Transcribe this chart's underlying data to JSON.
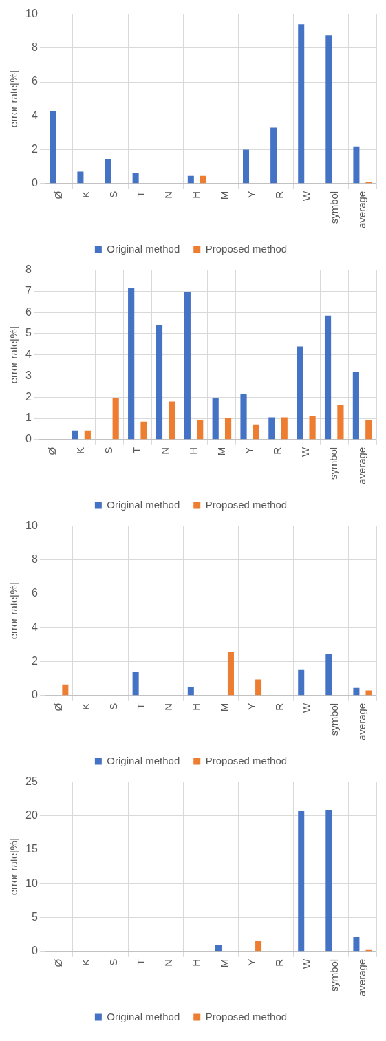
{
  "chart_data": [
    {
      "type": "bar",
      "ylabel": "error rate[%]",
      "categories": [
        "Ø",
        "K",
        "S",
        "T",
        "N",
        "H",
        "M",
        "Y",
        "R",
        "W",
        "symbol",
        "average"
      ],
      "series": [
        {
          "name": "Original method",
          "color": "#4472c4",
          "values": [
            4.3,
            0.7,
            1.45,
            0.6,
            0,
            0.45,
            0,
            2.0,
            3.3,
            9.4,
            8.75,
            2.2
          ]
        },
        {
          "name": "Proposed method",
          "color": "#ed7d31",
          "values": [
            0,
            0,
            0,
            0,
            0,
            0.45,
            0,
            0,
            0,
            0,
            0,
            0.1
          ]
        }
      ],
      "ylim": [
        0,
        10
      ],
      "yticks": [
        0,
        2,
        4,
        6,
        8,
        10
      ],
      "grid": true,
      "legend": "bottom"
    },
    {
      "type": "bar",
      "ylabel": "error rate[%]",
      "categories": [
        "Ø",
        "K",
        "S",
        "T",
        "N",
        "H",
        "M",
        "Y",
        "R",
        "W",
        "symbol",
        "average"
      ],
      "series": [
        {
          "name": "Original method",
          "color": "#4472c4",
          "values": [
            0,
            0.42,
            0,
            7.15,
            5.4,
            6.95,
            1.95,
            2.15,
            1.05,
            4.4,
            5.85,
            3.2
          ]
        },
        {
          "name": "Proposed method",
          "color": "#ed7d31",
          "values": [
            0,
            0.42,
            1.95,
            0.85,
            1.8,
            0.9,
            1.0,
            0.72,
            1.05,
            1.1,
            1.65,
            0.9
          ]
        }
      ],
      "ylim": [
        0,
        8
      ],
      "yticks": [
        0,
        1,
        2,
        3,
        4,
        5,
        6,
        7,
        8
      ],
      "grid": true,
      "legend": "bottom"
    },
    {
      "type": "bar",
      "ylabel": "error rate[%]",
      "categories": [
        "Ø",
        "K",
        "S",
        "T",
        "N",
        "H",
        "M",
        "Y",
        "R",
        "W",
        "symbol",
        "average"
      ],
      "series": [
        {
          "name": "Original method",
          "color": "#4472c4",
          "values": [
            0,
            0,
            0,
            1.4,
            0,
            0.5,
            0,
            0,
            0,
            1.5,
            2.45,
            0.45
          ]
        },
        {
          "name": "Proposed method",
          "color": "#ed7d31",
          "values": [
            0.65,
            0,
            0,
            0,
            0,
            0,
            2.55,
            0.95,
            0,
            0,
            0,
            0.3
          ]
        }
      ],
      "ylim": [
        0,
        10
      ],
      "yticks": [
        0,
        2,
        4,
        6,
        8,
        10
      ],
      "grid": true,
      "legend": "bottom"
    },
    {
      "type": "bar",
      "ylabel": "error rate[%]",
      "categories": [
        "Ø",
        "K",
        "S",
        "T",
        "N",
        "H",
        "M",
        "Y",
        "R",
        "W",
        "symbol",
        "average"
      ],
      "series": [
        {
          "name": "Original method",
          "color": "#4472c4",
          "values": [
            0,
            0,
            0,
            0,
            0,
            0,
            0.9,
            0,
            0,
            20.7,
            20.9,
            2.1
          ]
        },
        {
          "name": "Proposed method",
          "color": "#ed7d31",
          "values": [
            0,
            0,
            0,
            0,
            0,
            0,
            0,
            1.5,
            0,
            0,
            0,
            0.2
          ]
        }
      ],
      "ylim": [
        0,
        25
      ],
      "yticks": [
        0,
        5,
        10,
        15,
        20,
        25
      ],
      "grid": true,
      "legend": "bottom"
    }
  ]
}
